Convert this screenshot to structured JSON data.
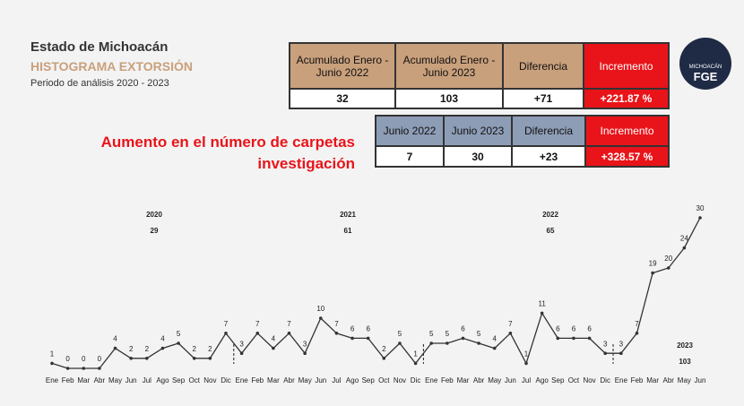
{
  "header": {
    "title": "Estado de Michoacán",
    "subtitle": "HISTOGRAMA EXTORSIÓN",
    "period": "Periodo de análisis 2020 - 2023"
  },
  "logo": {
    "state": "MICHOACÁN",
    "name": "FGE"
  },
  "headline": [
    "Aumento en el número de carpetas",
    "investigación"
  ],
  "tables": [
    {
      "headers": [
        "Acumulado Enero - Junio 2022",
        "Acumulado Enero - Junio 2023",
        "Diferencia",
        "Incremento"
      ],
      "row": [
        "32",
        "103",
        "+71",
        "+221.87 %"
      ]
    },
    {
      "headers": [
        "Junio 2022",
        "Junio 2023",
        "Diferencia",
        "Incremento"
      ],
      "row": [
        "7",
        "30",
        "+23",
        "+328.57 %"
      ]
    }
  ],
  "chart_data": {
    "type": "line",
    "color": "#333333",
    "categories": [
      "Ene",
      "Feb",
      "Mar",
      "Abr",
      "May",
      "Jun",
      "Jul",
      "Ago",
      "Sep",
      "Oct",
      "Nov",
      "Dic",
      "Ene",
      "Feb",
      "Mar",
      "Abr",
      "May",
      "Jun",
      "Jul",
      "Ago",
      "Sep",
      "Oct",
      "Nov",
      "Dic",
      "Ene",
      "Feb",
      "Mar",
      "Abr",
      "May",
      "Jun",
      "Jul",
      "Ago",
      "Sep",
      "Oct",
      "Nov",
      "Dic",
      "Ene",
      "Feb",
      "Mar",
      "Abr",
      "May",
      "Jun"
    ],
    "values": [
      1,
      0,
      0,
      0,
      4,
      2,
      2,
      4,
      5,
      2,
      2,
      7,
      3,
      7,
      4,
      7,
      3,
      10,
      7,
      6,
      6,
      2,
      5,
      1,
      5,
      5,
      6,
      5,
      4,
      7,
      1,
      11,
      6,
      6,
      6,
      3,
      3,
      7,
      19,
      20,
      24,
      30
    ],
    "year_totals": [
      {
        "year": "2020",
        "total": "29"
      },
      {
        "year": "2021",
        "total": "61"
      },
      {
        "year": "2022",
        "total": "65"
      },
      {
        "year": "2023",
        "total": "103"
      }
    ]
  }
}
